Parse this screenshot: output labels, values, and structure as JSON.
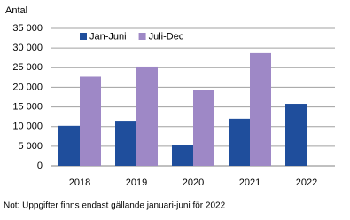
{
  "chart_data": {
    "type": "bar",
    "y_label": "Antal",
    "categories": [
      "2018",
      "2019",
      "2020",
      "2021",
      "2022"
    ],
    "series": [
      {
        "name": "Jan-Juni",
        "color": "#1f4e9c",
        "values": [
          10200,
          11500,
          5300,
          12000,
          15800
        ]
      },
      {
        "name": "Juli-Dec",
        "color": "#9e88c6",
        "values": [
          22700,
          25300,
          19300,
          28700,
          null
        ]
      }
    ],
    "ylim": [
      0,
      35000
    ],
    "yticks": [
      0,
      {
        "value": 5000,
        "label": "5 000"
      },
      {
        "value": 10000,
        "label": "10 000"
      },
      {
        "value": 15000,
        "label": "15 000"
      },
      {
        "value": 20000,
        "label": "20 000"
      },
      {
        "value": 25000,
        "label": "25 000"
      },
      {
        "value": 30000,
        "label": "30 000"
      },
      {
        "value": 35000,
        "label": "35 000"
      }
    ],
    "grid": true,
    "legend": "top-left",
    "footnote": "Not: Uppgifter finns endast gällande januari-juni för 2022"
  }
}
